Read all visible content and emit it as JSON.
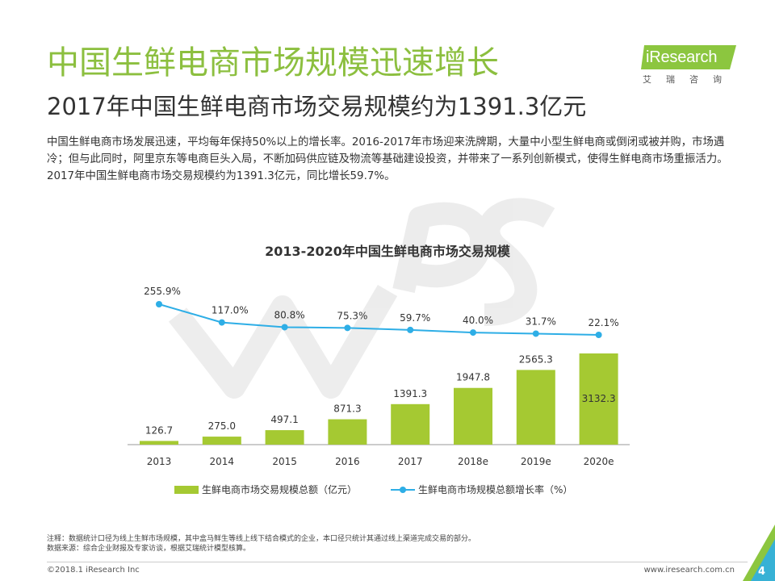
{
  "header": {
    "title": "中国生鲜电商市场规模迅速增长",
    "subtitle": "2017年中国生鲜电商市场交易规模约为1391.3亿元"
  },
  "logo": {
    "brand": "iResearch",
    "subtitle": "艾瑞咨询"
  },
  "description": "中国生鲜电商市场发展迅速，平均每年保持50%以上的增长率。2016-2017年市场迎来洗牌期，大量中小型生鲜电商或倒闭或被并购，市场遇冷；但与此同时，阿里京东等电商巨头入局，不断加码供应链及物流等基础建设投资，并带来了一系列创新模式，使得生鲜电商市场重振活力。2017年中国生鲜电商市场交易规模约为1391.3亿元，同比增长59.7%。",
  "chart_data": {
    "type": "bar",
    "title": "2013-2020年中国生鲜电商市场交易规模",
    "categories": [
      "2013",
      "2014",
      "2015",
      "2016",
      "2017",
      "2018e",
      "2019e",
      "2020e"
    ],
    "series": [
      {
        "name": "生鲜电商市场交易规模总额（亿元）",
        "type": "bar",
        "values": [
          126.7,
          275.0,
          497.1,
          871.3,
          1391.3,
          1947.8,
          2565.3,
          3132.3
        ],
        "labels": [
          "126.7",
          "275.0",
          "497.1",
          "871.3",
          "1391.3",
          "1947.8",
          "2565.3",
          "3132.3"
        ],
        "color": "#a5c932"
      },
      {
        "name": "生鲜电商市场规模总额增长率（%）",
        "type": "line",
        "values": [
          255.9,
          117.0,
          80.8,
          75.3,
          59.7,
          40.0,
          31.7,
          22.1
        ],
        "labels": [
          "255.9%",
          "117.0%",
          "80.8%",
          "75.3%",
          "59.7%",
          "40.0%",
          "31.7%",
          "22.1%"
        ],
        "color": "#2eaee6"
      }
    ],
    "xlabel": "",
    "ylabel": "",
    "grid": false,
    "legend_position": "bottom"
  },
  "notes": {
    "note": "注释：数据统计口径为线上生鲜市场规模，其中盒马鲜生等线上线下结合模式的企业，本口径只统计其通过线上渠道完成交易的部分。",
    "source": "数据来源：综合企业财报及专家访谈，根据艾瑞统计模型核算。"
  },
  "footer": {
    "copyright": "©2018.1 iResearch Inc",
    "website": "www.iresearch.com.cn",
    "page": "4"
  },
  "colors": {
    "title_green": "#8cbf3f",
    "bar_green": "#a5c932",
    "line_blue": "#2eaee6",
    "logo_green": "#8cc63f"
  }
}
